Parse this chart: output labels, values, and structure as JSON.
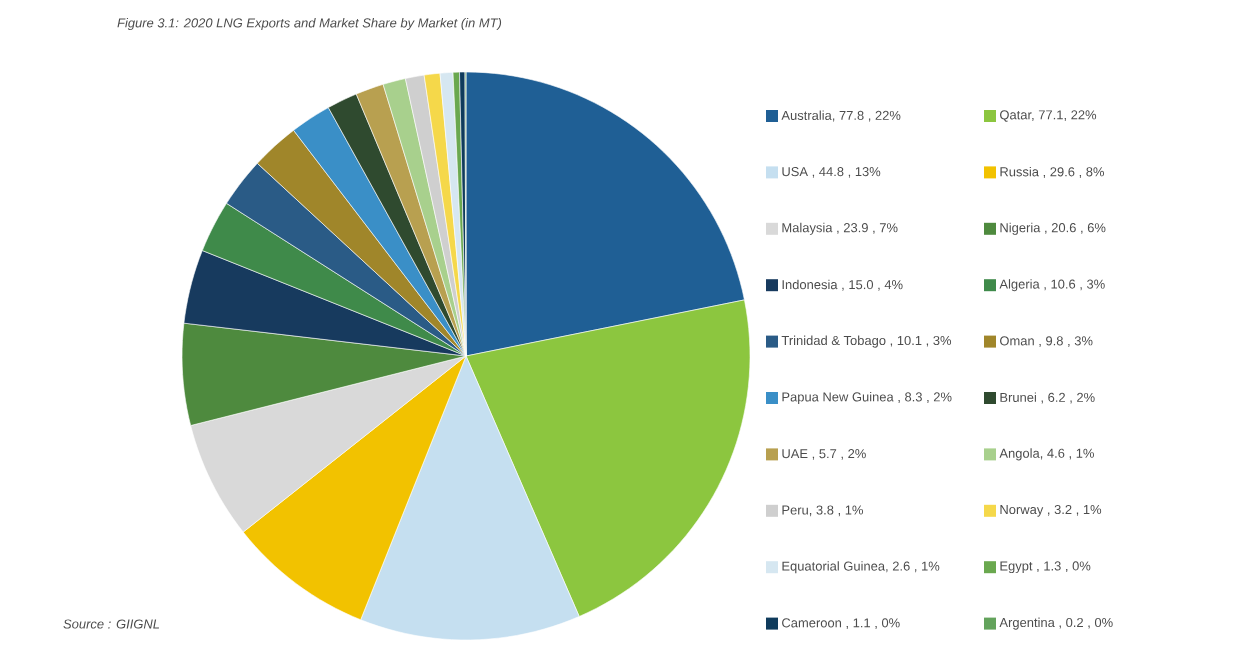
{
  "chart_data": {
    "type": "pie",
    "title": "Figure 3.1: 2020 LNG Exports and Market Share by Market (in MT)",
    "categories": [
      "Australia, 77.8 , 22%",
      "Qatar, 77.1, 22%",
      "USA , 44.8 , 13%",
      "Russia , 29.6 , 8%",
      "Malaysia , 23.9 , 7%",
      "Nigeria , 20.6 , 6%",
      "Indonesia , 15.0 , 4%",
      "Algeria , 10.6 , 3%",
      "Trinidad & Tobago , 10.1 , 3%",
      "Oman , 9.8 , 3%",
      "Papua New Guinea , 8.3 , 2%",
      "Brunei , 6.2 , 2%",
      "UAE , 5.7 , 2%",
      "Angola, 4.6 , 1%",
      "Peru, 3.8 , 1%",
      "Norway , 3.2 , 1%",
      "Equatorial Guinea, 2.6 , 1%",
      "Egypt , 1.3 , 0%",
      "Cameroon , 1.1 , 0%",
      "Argentina , 0.2 , 0%"
    ],
    "values": [
      77.8,
      77.1,
      44.8,
      29.6,
      23.9,
      20.6,
      15.0,
      10.6,
      10.1,
      9.8,
      8.3,
      6.2,
      5.7,
      4.6,
      3.8,
      3.2,
      2.6,
      1.3,
      1.1,
      0.2
    ],
    "colors": [
      "#1f5f95",
      "#8cc63f",
      "#c5dff0",
      "#f2c200",
      "#d9d9d9",
      "#4e8a3e",
      "#173a5e",
      "#3f8a4a",
      "#2a5b86",
      "#a0862a",
      "#3a8fc7",
      "#2f4a2f",
      "#b8a050",
      "#a8d08d",
      "#cfcfcf",
      "#f5d84a",
      "#d6e7f1",
      "#6aa84f",
      "#0f3b5c",
      "#63a35c"
    ],
    "legend": "right",
    "annotations": [
      "Source : GIIGNL"
    ]
  }
}
